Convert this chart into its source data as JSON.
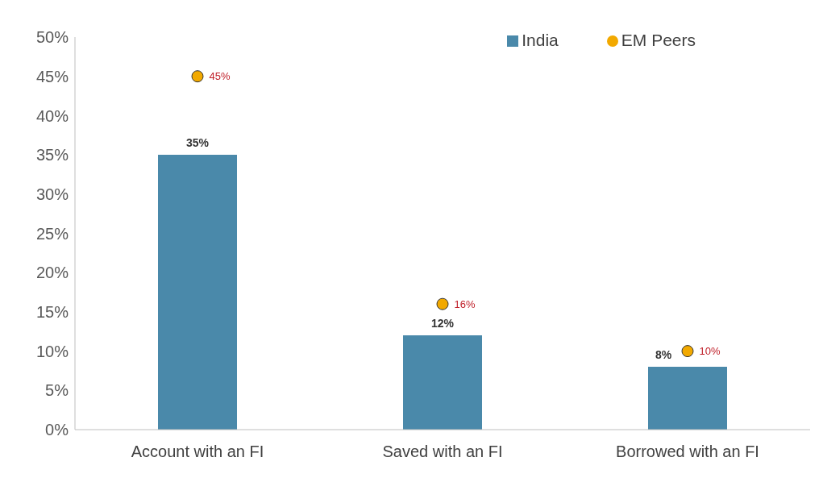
{
  "chart_data": {
    "type": "bar",
    "categories": [
      "Account with an FI",
      "Saved with an FI",
      "Borrowed with an FI"
    ],
    "series": [
      {
        "name": "India",
        "color": "#4a89aa",
        "values": [
          35,
          12,
          8
        ],
        "value_labels": [
          "35%",
          "12%",
          "8%"
        ]
      },
      {
        "name": "EM Peers",
        "type": "scatter",
        "color": "#f2a900",
        "values": [
          45,
          16,
          10
        ],
        "value_labels": [
          "45%",
          "16%",
          "10%"
        ]
      }
    ],
    "ylim": [
      0,
      50
    ],
    "yticks": [
      {
        "value": 0,
        "label": "0%"
      },
      {
        "value": 5,
        "label": "5%"
      },
      {
        "value": 10,
        "label": "10%"
      },
      {
        "value": 15,
        "label": "15%"
      },
      {
        "value": 20,
        "label": "20%"
      },
      {
        "value": 25,
        "label": "25%"
      },
      {
        "value": 30,
        "label": "30%"
      },
      {
        "value": 35,
        "label": "35%"
      },
      {
        "value": 40,
        "label": "40%"
      },
      {
        "value": 45,
        "label": "45%"
      },
      {
        "value": 50,
        "label": "50%"
      }
    ],
    "grid": false,
    "legend": "top right",
    "marker": "circle"
  }
}
